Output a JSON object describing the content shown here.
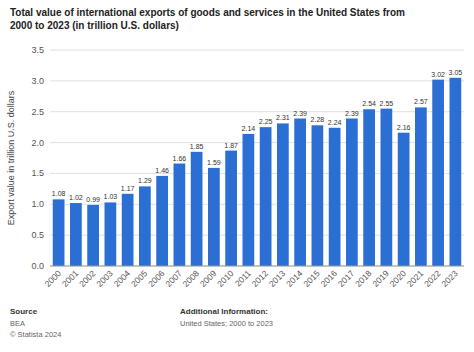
{
  "chart_data": {
    "type": "bar",
    "title": "Total value of international exports of goods and services in the United States from\n2000 to 2023 (in trillion U.S. dollars)",
    "categories": [
      "2000",
      "2001",
      "2002",
      "2003",
      "2004",
      "2005",
      "2006",
      "2007",
      "2008",
      "2009",
      "2010",
      "2011",
      "2012",
      "2013",
      "2014",
      "2015",
      "2016",
      "2017",
      "2018",
      "2019",
      "2020",
      "2021",
      "2022",
      "2023"
    ],
    "values": [
      1.08,
      1.02,
      0.99,
      1.03,
      1.17,
      1.29,
      1.46,
      1.66,
      1.85,
      1.59,
      1.87,
      2.14,
      2.25,
      2.31,
      2.39,
      2.28,
      2.24,
      2.39,
      2.54,
      2.55,
      2.16,
      2.57,
      3.02,
      3.05
    ],
    "color": "#2b6fd4",
    "ylabel": "Export value in trillion U.S. dollars",
    "ylim": [
      0,
      3.5
    ],
    "yticks": [
      {
        "value": 0,
        "label": "0.0"
      },
      0.5,
      {
        "value": 1.0,
        "label": "1.0"
      },
      1.5,
      {
        "value": 2.0,
        "label": "2.0"
      },
      2.5,
      {
        "value": 3.0,
        "label": "3.0"
      },
      3.5
    ],
    "grid": true,
    "data_labels": true,
    "annotations": [
      "Source",
      "BEA",
      "© Statista 2024",
      "Additional Information:",
      "United States; 2000 to 2023"
    ]
  }
}
